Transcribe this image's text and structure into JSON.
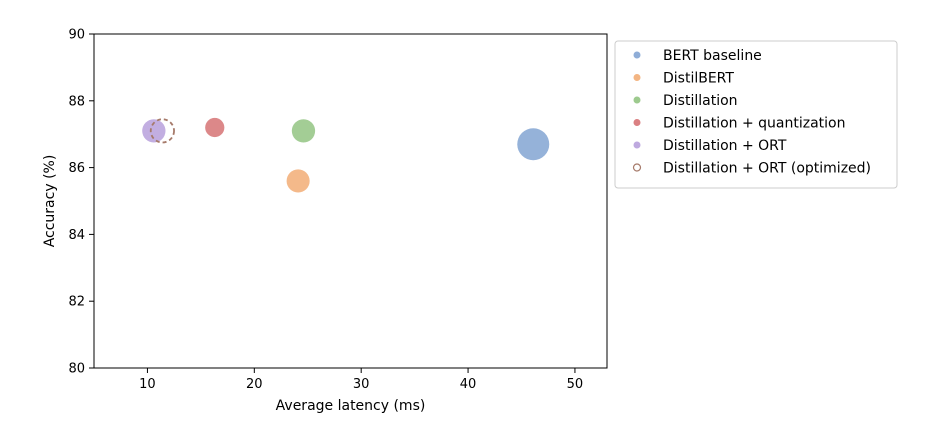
{
  "chart_data": {
    "type": "scatter",
    "title": "",
    "xlabel": "Average latency (ms)",
    "ylabel": "Accuracy (%)",
    "xlim": [
      5,
      53
    ],
    "ylim": [
      80,
      90
    ],
    "xticks": [
      10,
      20,
      30,
      40,
      50
    ],
    "yticks": [
      80,
      82,
      84,
      86,
      88,
      90
    ],
    "grid": false,
    "legend_position": "outside-right-top",
    "series": [
      {
        "name": "BERT baseline",
        "color": "#7b9fd0",
        "style": "filled",
        "x": [
          46.1
        ],
        "y": [
          86.7
        ],
        "size": 1.0
      },
      {
        "name": "DistilBERT",
        "color": "#f1a86d",
        "style": "filled",
        "x": [
          24.1
        ],
        "y": [
          85.6
        ],
        "size": 0.52
      },
      {
        "name": "Distillation",
        "color": "#8cc17a",
        "style": "filled",
        "x": [
          24.6
        ],
        "y": [
          87.1
        ],
        "size": 0.53
      },
      {
        "name": "Distillation + quantization",
        "color": "#d36a6c",
        "style": "filled",
        "x": [
          16.3
        ],
        "y": [
          87.2
        ],
        "size": 0.36
      },
      {
        "name": "Distillation + ORT",
        "color": "#b39ad9",
        "style": "filled",
        "x": [
          10.6
        ],
        "y": [
          87.1
        ],
        "size": 0.53
      },
      {
        "name": "Distillation + ORT (optimized)",
        "color": "#a67a6a",
        "style": "dashed-outline",
        "x": [
          11.4
        ],
        "y": [
          87.1
        ],
        "size": 0.53
      }
    ]
  }
}
